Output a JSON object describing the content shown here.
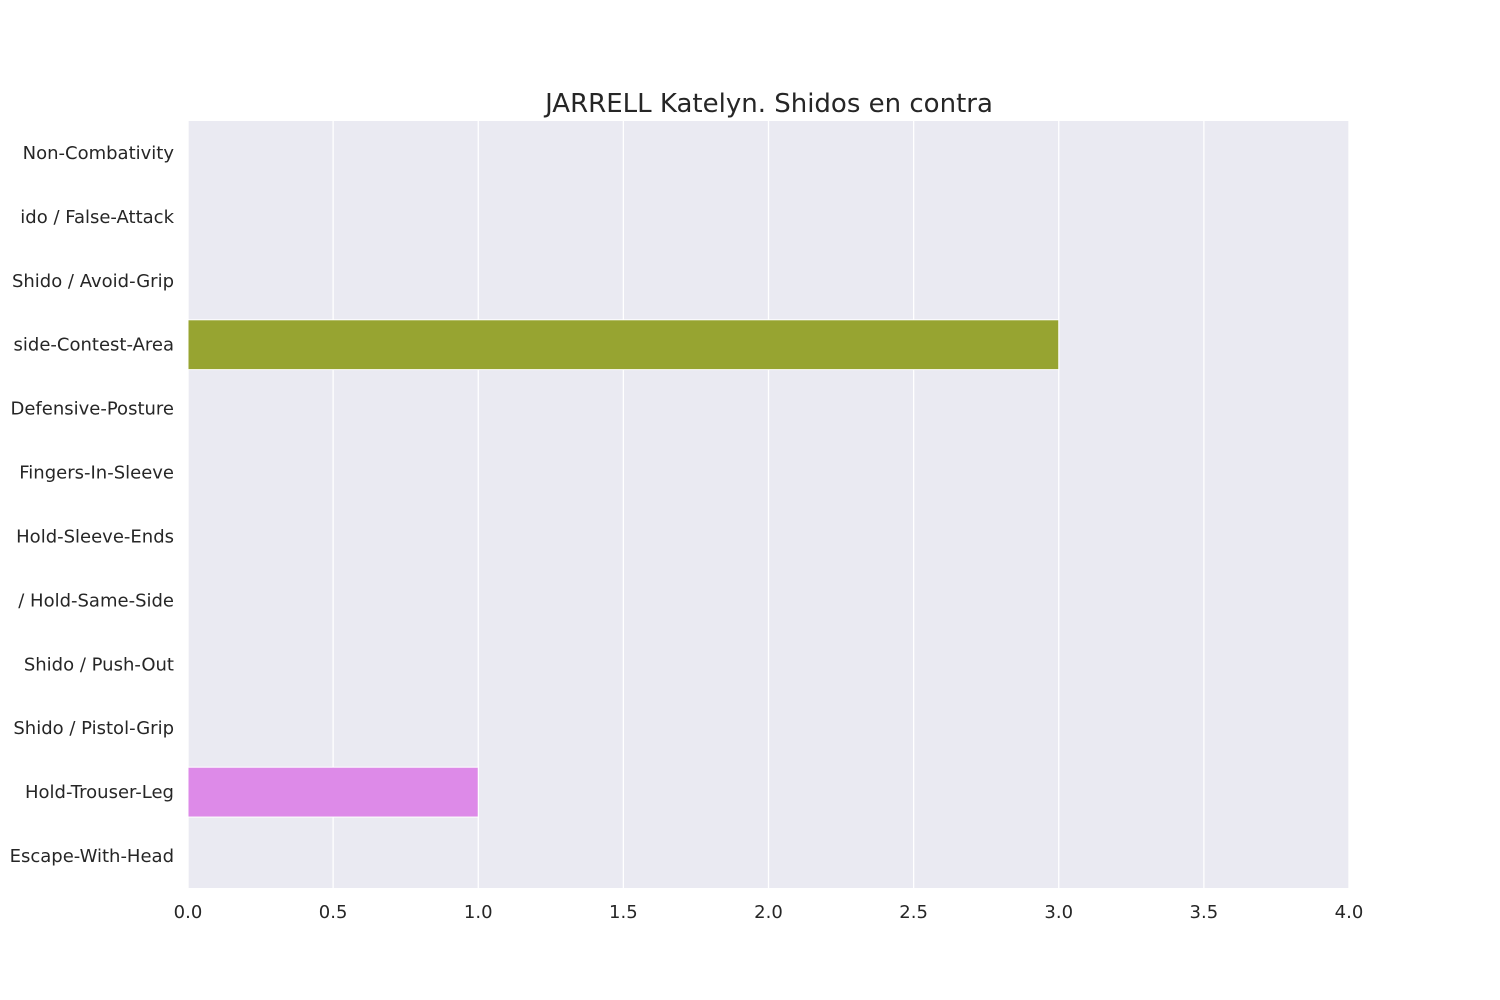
{
  "chart_data": {
    "type": "bar",
    "orientation": "horizontal",
    "title": "JARRELL Katelyn. Shidos en contra",
    "xlabel": "",
    "ylabel": "",
    "categories": [
      "Non-Combativity",
      "ido / False-Attack",
      "Shido / Avoid-Grip",
      "side-Contest-Area",
      "Defensive-Posture",
      "Fingers-In-Sleeve",
      "Hold-Sleeve-Ends",
      "/ Hold-Same-Side",
      "Shido / Push-Out",
      "Shido / Pistol-Grip",
      "Hold-Trouser-Leg",
      "Escape-With-Head"
    ],
    "values": [
      0,
      0,
      0,
      3,
      0,
      0,
      0,
      0,
      0,
      0,
      1,
      0
    ],
    "bar_colors": [
      "#f77189",
      "#e68332",
      "#bb9832",
      "#97a431",
      "#50b131",
      "#34af84",
      "#36ada4",
      "#38a9c5",
      "#6e9bf4",
      "#cc7af4",
      "#dd8ae8",
      "#f565cc"
    ],
    "xlim": [
      0,
      4.0
    ],
    "xticks": [
      "0.0",
      "0.5",
      "1.0",
      "1.5",
      "2.0",
      "2.5",
      "3.0",
      "3.5",
      "4.0"
    ],
    "grid": true,
    "colors": {
      "plot_background": "#eaeaf2",
      "grid": "#ffffff",
      "text": "#262626"
    }
  }
}
